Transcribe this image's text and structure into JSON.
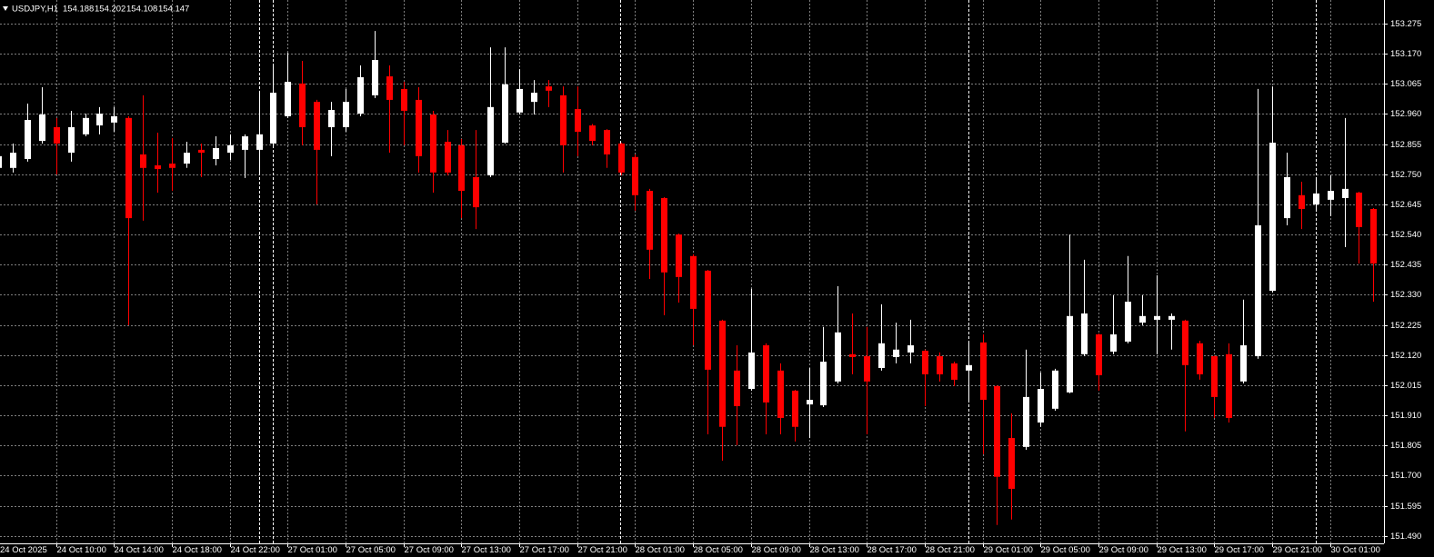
{
  "chart_data": {
    "type": "candlestick",
    "title": "USDJPY,H1",
    "header_prices": [
      154.188,
      154.202,
      154.108,
      154.147
    ],
    "up_color": "#ffffff",
    "down_color": "#ff0000",
    "grid": true,
    "ylim": [
      151.464,
      153.357
    ],
    "yticks": [
      153.275,
      {
        "value": 153.17,
        "label": "153.170"
      },
      153.065,
      {
        "value": 152.96,
        "label": "152.960"
      },
      152.855,
      {
        "value": 152.75,
        "label": "152.750"
      },
      152.645,
      {
        "value": 152.54,
        "label": "152.540"
      },
      152.435,
      {
        "value": 152.33,
        "label": "152.330"
      },
      152.225,
      {
        "value": 152.12,
        "label": "152.120"
      },
      152.015,
      {
        "value": 151.91,
        "label": "151.910"
      },
      151.805,
      {
        "value": 151.7,
        "label": "151.700"
      },
      151.595,
      {
        "value": 151.49,
        "label": "151.490"
      }
    ],
    "categories": [
      "24 Oct 2025",
      null,
      null,
      null,
      "24 Oct 10:00",
      null,
      null,
      null,
      "24 Oct 14:00",
      null,
      null,
      null,
      "24 Oct 18:00",
      null,
      null,
      null,
      "24 Oct 22:00",
      null,
      null,
      null,
      "27 Oct 01:00",
      null,
      null,
      null,
      "27 Oct 05:00",
      null,
      null,
      null,
      "27 Oct 09:00",
      null,
      null,
      null,
      "27 Oct 13:00",
      null,
      null,
      null,
      "27 Oct 17:00",
      null,
      null,
      null,
      "27 Oct 21:00",
      null,
      null,
      null,
      "28 Oct 01:00",
      null,
      null,
      null,
      "28 Oct 05:00",
      null,
      null,
      null,
      "28 Oct 09:00",
      null,
      null,
      null,
      "28 Oct 13:00",
      null,
      null,
      null,
      "28 Oct 17:00",
      null,
      null,
      null,
      "28 Oct 21:00",
      null,
      null,
      null,
      "29 Oct 01:00",
      null,
      null,
      null,
      "29 Oct 05:00",
      null,
      null,
      null,
      "29 Oct 09:00",
      null,
      null,
      null,
      "29 Oct 13:00",
      null,
      null,
      null,
      "29 Oct 17:00",
      null,
      null,
      null,
      "29 Oct 21:00",
      null,
      null,
      null,
      "30 Oct 01:00",
      null,
      null,
      null
    ],
    "open": [
      152.772,
      152.772,
      152.803,
      152.866,
      152.914,
      152.825,
      152.889,
      152.92,
      152.93,
      152.946,
      152.819,
      152.781,
      152.787,
      152.787,
      152.835,
      152.803,
      152.825,
      152.835,
      152.835,
      152.857,
      152.952,
      153.066,
      153.002,
      152.914,
      152.914,
      152.961,
      153.025,
      153.091,
      153.047,
      153.009,
      152.958,
      152.863,
      152.851,
      152.74,
      152.746,
      152.86,
      152.965,
      153.002,
      153.056,
      153.025,
      152.977,
      152.92,
      152.904,
      152.857,
      152.81,
      152.692,
      152.667,
      152.54,
      152.465,
      152.414,
      152.24,
      152.066,
      152.002,
      152.154,
      152.066,
      151.996,
      151.948,
      151.945,
      152.028,
      152.123,
      152.116,
      152.075,
      152.113,
      152.129,
      152.135,
      152.116,
      152.091,
      152.066,
      152.164,
      152.012,
      151.831,
      151.8,
      151.885,
      151.933,
      151.99,
      152.123,
      152.192,
      152.132,
      152.167,
      152.233,
      152.243,
      152.243,
      152.24,
      152.161,
      152.116,
      152.123,
      152.028,
      152.116,
      152.344,
      152.597,
      152.677,
      152.645,
      152.661,
      152.667,
      152.686,
      152.629
    ],
    "high": [
      152.835,
      152.857,
      152.996,
      153.053,
      152.946,
      152.971,
      152.961,
      152.984,
      152.984,
      152.952,
      153.025,
      152.895,
      152.876,
      152.863,
      152.857,
      152.882,
      152.889,
      152.889,
      153.041,
      153.129,
      153.173,
      153.145,
      153.009,
      153.002,
      153.047,
      153.129,
      153.249,
      153.129,
      153.072,
      153.053,
      152.971,
      152.904,
      152.873,
      152.904,
      153.192,
      153.192,
      153.116,
      153.078,
      153.078,
      153.056,
      153.056,
      152.925,
      152.907,
      152.86,
      152.819,
      152.699,
      152.67,
      152.543,
      152.471,
      152.417,
      152.243,
      152.154,
      152.351,
      152.161,
      152.091,
      151.999,
      152.075,
      152.218,
      152.36,
      152.265,
      152.218,
      152.297,
      152.233,
      152.243,
      152.139,
      152.129,
      152.097,
      152.17,
      152.192,
      152.015,
      151.917,
      152.139,
      152.059,
      152.072,
      152.54,
      152.452,
      152.195,
      152.328,
      152.465,
      152.328,
      152.398,
      152.265,
      152.243,
      152.17,
      152.119,
      152.161,
      152.313,
      153.047,
      153.056,
      152.825,
      152.724,
      152.74,
      152.746,
      152.946,
      152.689,
      152.632
    ],
    "low": [
      152.756,
      152.756,
      152.794,
      152.857,
      152.749,
      152.794,
      152.882,
      152.889,
      152.898,
      152.224,
      152.588,
      152.686,
      152.692,
      152.772,
      152.74,
      152.781,
      152.8,
      152.737,
      152.749,
      152.851,
      152.946,
      152.851,
      152.645,
      152.813,
      152.898,
      152.952,
      153.015,
      152.825,
      152.851,
      152.756,
      152.686,
      152.746,
      152.597,
      152.559,
      152.74,
      152.857,
      152.958,
      152.958,
      152.984,
      152.756,
      152.813,
      152.851,
      152.772,
      152.746,
      152.623,
      152.385,
      152.259,
      152.303,
      152.154,
      151.844,
      151.752,
      151.806,
      151.996,
      151.844,
      151.844,
      151.819,
      151.831,
      151.939,
      152.021,
      152.053,
      151.844,
      152.066,
      152.091,
      152.091,
      151.942,
      152.028,
      152.012,
      151.964,
      151.775,
      151.528,
      151.547,
      151.79,
      151.87,
      151.926,
      151.987,
      152.116,
      151.996,
      152.123,
      152.161,
      152.224,
      152.123,
      152.139,
      151.854,
      152.034,
      151.901,
      151.885,
      152.021,
      152.107,
      152.338,
      152.572,
      152.559,
      152.629,
      152.604,
      152.496,
      152.439,
      152.306
    ],
    "close": [
      152.813,
      152.825,
      152.939,
      152.958,
      152.857,
      152.914,
      152.946,
      152.961,
      152.952,
      152.597,
      152.772,
      152.768,
      152.772,
      152.825,
      152.825,
      152.841,
      152.851,
      152.882,
      152.889,
      153.034,
      153.072,
      152.914,
      152.835,
      152.974,
      153.002,
      153.088,
      153.148,
      153.009,
      152.971,
      152.813,
      152.756,
      152.756,
      152.692,
      152.635,
      152.984,
      153.063,
      153.047,
      153.034,
      153.041,
      152.851,
      152.898,
      152.866,
      152.819,
      152.756,
      152.677,
      152.487,
      152.408,
      152.392,
      152.281,
      152.069,
      151.87,
      151.942,
      152.129,
      151.955,
      151.901,
      151.87,
      151.964,
      152.097,
      152.199,
      152.113,
      152.028,
      152.161,
      152.139,
      152.154,
      152.053,
      152.053,
      152.034,
      152.085,
      151.964,
      151.696,
      151.654,
      151.974,
      152.002,
      152.066,
      152.256,
      152.265,
      152.05,
      152.192,
      152.306,
      152.256,
      152.256,
      152.256,
      152.085,
      152.053,
      151.974,
      151.901,
      152.154,
      152.572,
      152.86,
      152.74,
      152.629,
      152.683,
      152.692,
      152.699,
      152.566,
      152.439
    ]
  }
}
